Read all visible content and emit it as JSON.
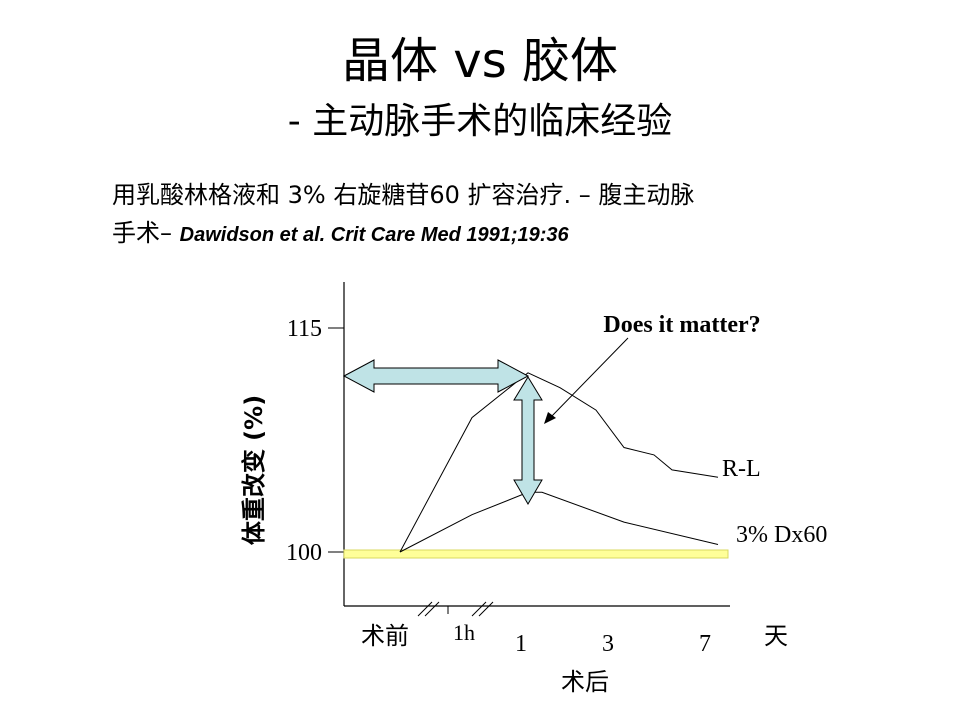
{
  "slide": {
    "title": "晶体 vs 胶体",
    "subtitle": "- 主动脉手术的临床经验",
    "body_line1": "用乳酸林格液和 3% 右旋糖苷60 扩容治疗. – 腹主动脉",
    "body_line2_prefix": "手术– ",
    "citation": "Dawidson et al. Crit Care Med 1991;19:36"
  },
  "chart_data": {
    "type": "line",
    "ylabel": "体重改变 (%)",
    "yticks": [
      "115",
      "100"
    ],
    "xticks": [
      "术前",
      "1h",
      "1",
      "3",
      "7"
    ],
    "x_unit": "天",
    "x_group_label": "术后",
    "annotation": "Does it matter?",
    "series": [
      {
        "name": "R-L",
        "x": [
          "术前",
          "1h",
          "1",
          "3",
          "7"
        ],
        "values": [
          100,
          109,
          112,
          107,
          105
        ]
      },
      {
        "name": "3% Dx60",
        "x": [
          "术前",
          "1h",
          "1",
          "3",
          "7"
        ],
        "values": [
          100,
          102.5,
          104,
          102,
          100.5
        ]
      }
    ],
    "baseline": 100,
    "colors": {
      "baseline_fill": "#ffff99",
      "baseline_stroke": "#d8d860",
      "arrow_fill": "#bfe3e6",
      "line": "#000000"
    }
  }
}
